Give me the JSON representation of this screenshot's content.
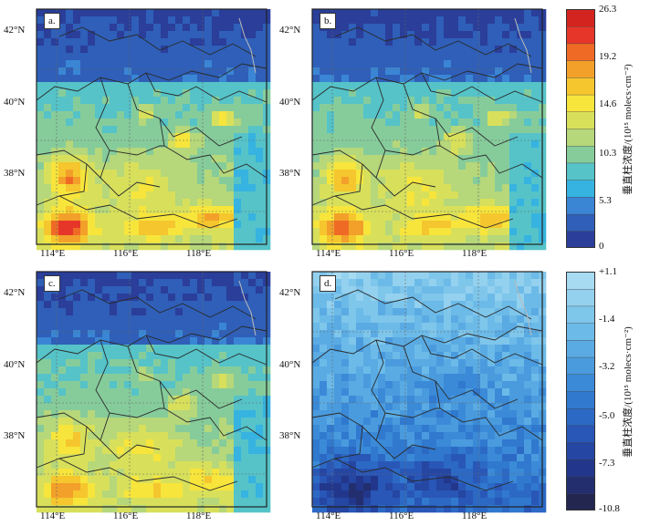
{
  "panels": [
    {
      "label": "a.",
      "kind": "abs",
      "intensity": 1.0
    },
    {
      "label": "b.",
      "kind": "abs",
      "intensity": 0.85
    },
    {
      "label": "c.",
      "kind": "abs",
      "intensity": 0.7
    },
    {
      "label": "d.",
      "kind": "diff",
      "intensity": 1.0
    }
  ],
  "axes": {
    "lon_labels": [
      "114°E",
      "116°E",
      "118°E"
    ],
    "lat_labels": [
      "42°N",
      "40°N",
      "38°N"
    ]
  },
  "colorbar_abs": {
    "title": "垂直柱浓度/(10¹⁵ molecs·cm⁻²)",
    "ticks": [
      "26.3",
      "19.2",
      "14.6",
      "10.3",
      "5.3",
      "0"
    ],
    "colors": [
      "#2a3e9a",
      "#2f5fb8",
      "#3a86d4",
      "#36b3e0",
      "#55c3c8",
      "#86cc9b",
      "#b6d77a",
      "#d8e05b",
      "#f7e53c",
      "#f5c62e",
      "#f2a02a",
      "#ef6b25",
      "#e6362a",
      "#d4241f"
    ]
  },
  "colorbar_diff": {
    "title": "垂直柱浓度/(10¹⁵ molecs·cm⁻²)",
    "ticks": [
      "+1.1",
      "-1.4",
      "-3.2",
      "-5.0",
      "-7.3",
      "-10.8"
    ],
    "colors": [
      "#23264f",
      "#222e6e",
      "#22378b",
      "#2546a2",
      "#2957b7",
      "#2c69c5",
      "#3079cf",
      "#3b8ad8",
      "#4a9bde",
      "#5aabe3",
      "#6cbae8",
      "#7fc6eb",
      "#94d1ef",
      "#a7dbf2"
    ]
  }
}
